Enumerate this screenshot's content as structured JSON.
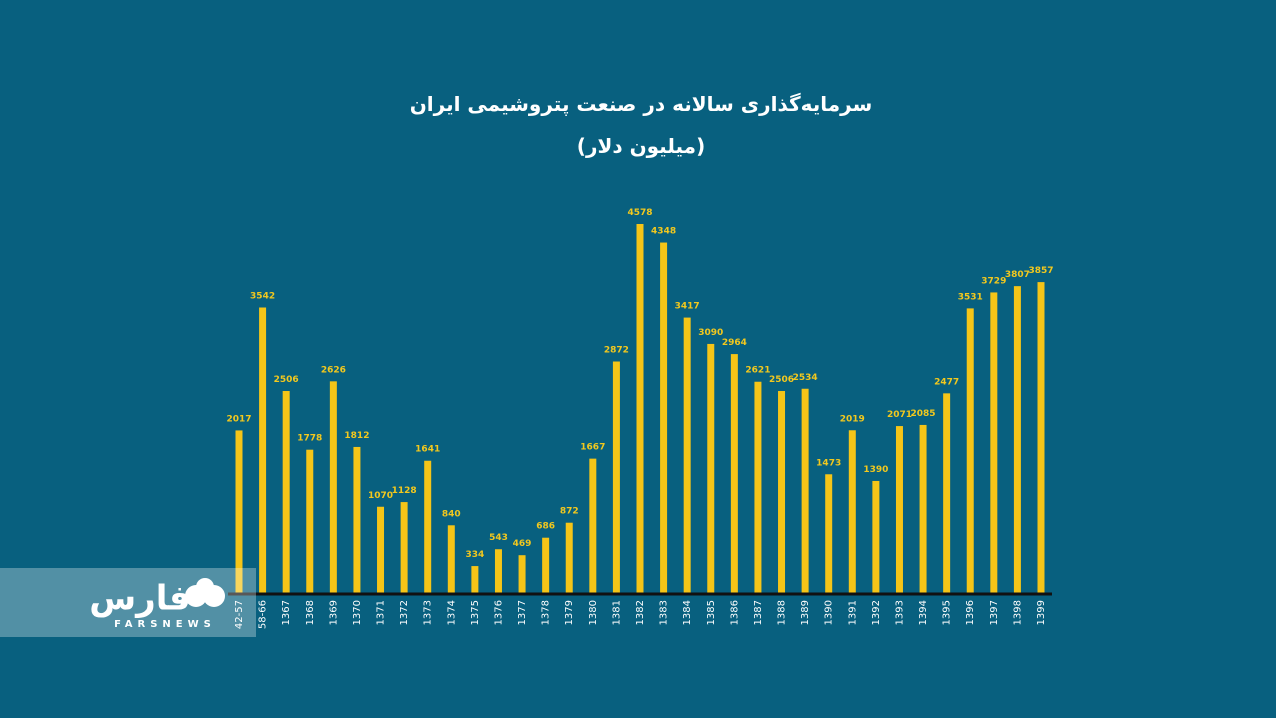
{
  "chart_data": {
    "type": "bar",
    "title": "سرمایه‌گذاری سالانه در صنعت پتروشیمی ایران",
    "subtitle": "(میلیون دلار)",
    "categories": [
      "42-57",
      "58-66",
      "1367",
      "1368",
      "1369",
      "1370",
      "1371",
      "1372",
      "1373",
      "1374",
      "1375",
      "1376",
      "1377",
      "1378",
      "1379",
      "1380",
      "1381",
      "1382",
      "1383",
      "1384",
      "1385",
      "1386",
      "1387",
      "1388",
      "1389",
      "1390",
      "1391",
      "1392",
      "1393",
      "1394",
      "1395",
      "1396",
      "1397",
      "1398",
      "1399"
    ],
    "values": [
      2017,
      3542,
      2506,
      1778,
      2626,
      1812,
      1070,
      1128,
      1641,
      840,
      334,
      543,
      469,
      686,
      872,
      1667,
      2872,
      4578,
      4348,
      3417,
      3090,
      2964,
      2621,
      2506,
      2534,
      1473,
      2019,
      1390,
      2071,
      2085,
      2477,
      3531,
      3729,
      3807,
      3857
    ],
    "color": "#f5c518"
  },
  "logo": {
    "name": "فارس",
    "subtext": "FARSNEWS"
  }
}
